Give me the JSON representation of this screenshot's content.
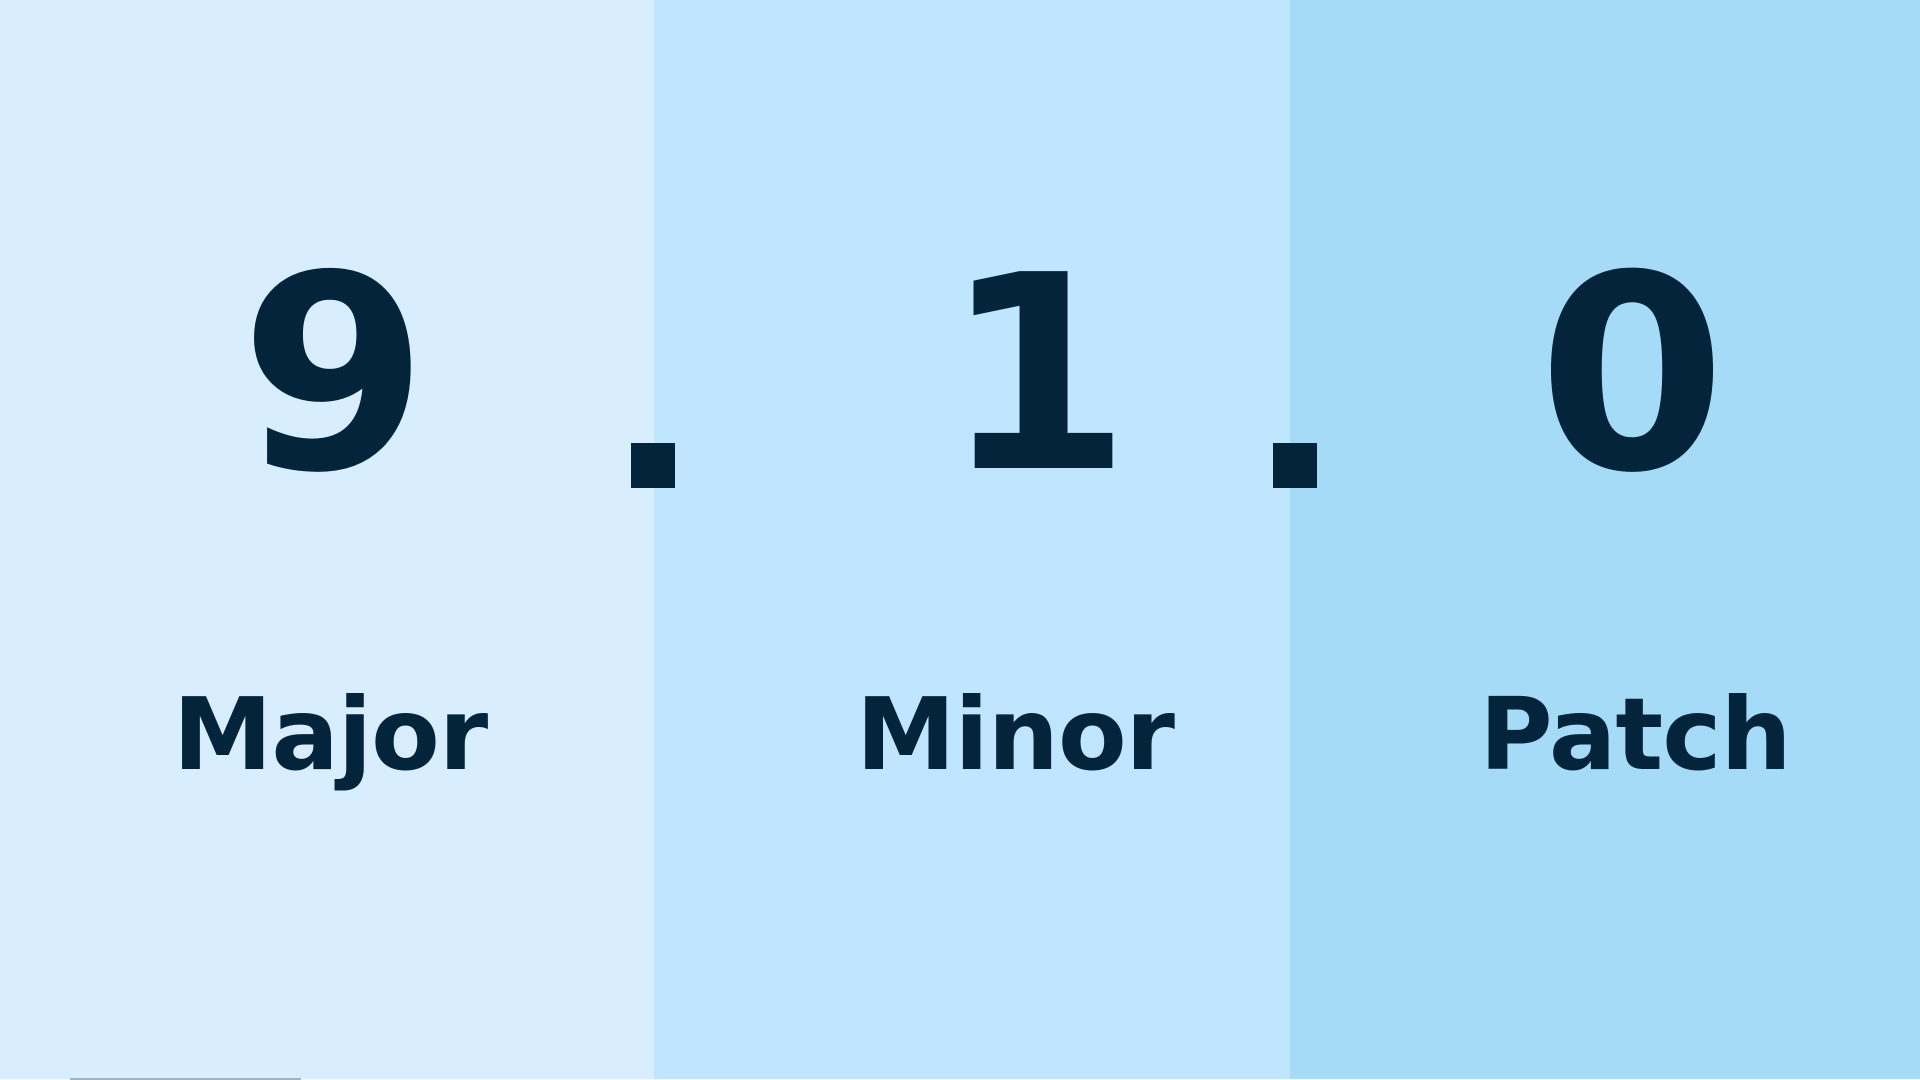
{
  "version": {
    "major": {
      "value": "9",
      "label": "Major"
    },
    "separator_1": ".",
    "minor": {
      "value": "1",
      "label": "Minor"
    },
    "separator_2": ".",
    "patch": {
      "value": "0",
      "label": "Patch"
    }
  },
  "colors": {
    "major_panel": "#d8eefe",
    "minor_panel": "#bfe6fe",
    "patch_panel": "#a6dbf7",
    "text": "#03243a"
  }
}
